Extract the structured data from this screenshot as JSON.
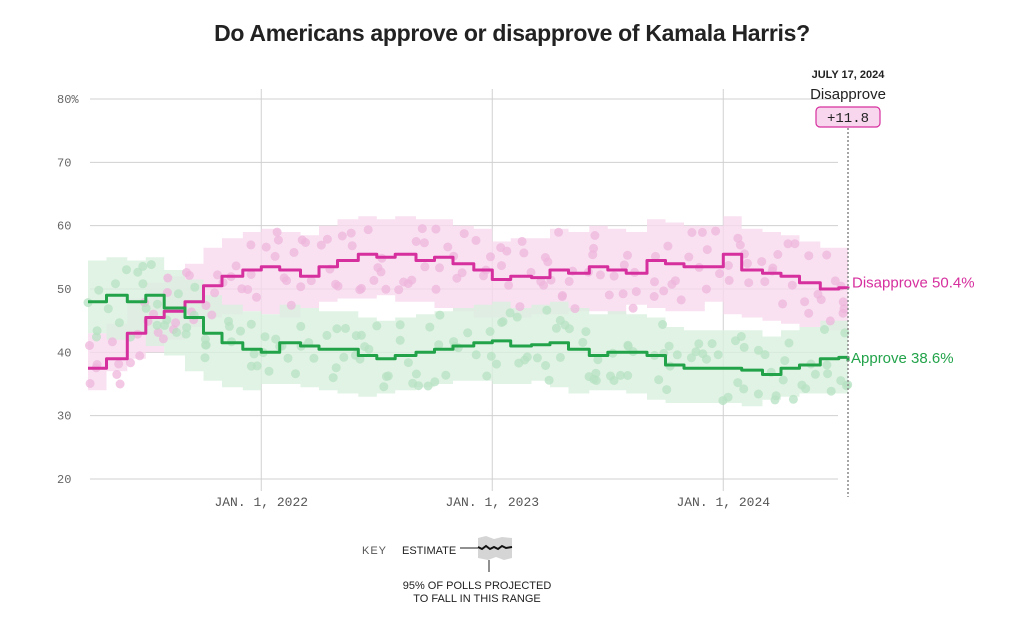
{
  "title": "Do Americans approve or disapprove of Kamala Harris?",
  "colors": {
    "disapprove": "#d62f9e",
    "disapprove_band": "#f7d9ee",
    "disapprove_dot": "#eeb6dc",
    "approve": "#22a34a",
    "approve_band": "#d9f0df",
    "approve_dot": "#b6e2c2",
    "grid": "#d0d0d0",
    "lead_badge_fill": "#f8d7ee",
    "lead_badge_stroke": "#d62f9e"
  },
  "callout": {
    "date": "JULY 17, 2024",
    "leader": "Disapprove",
    "margin": "+11.8"
  },
  "key": {
    "label": "KEY",
    "estimate": "ESTIMATE",
    "note_line1": "95% OF POLLS PROJECTED",
    "note_line2": "TO FALL IN THIS RANGE"
  },
  "chart_data": {
    "type": "line",
    "title": "Do Americans approve or disapprove of Kamala Harris?",
    "xlabel": "",
    "ylabel": "",
    "ylim": [
      20,
      80
    ],
    "yticks": [
      20,
      30,
      40,
      50,
      60,
      70,
      80
    ],
    "ytick_labels": [
      "20",
      "30",
      "40",
      "50",
      "60",
      "70",
      "80%"
    ],
    "xlim": [
      2021.25,
      2024.54
    ],
    "xticks": [
      2022.0,
      2023.0,
      2024.0
    ],
    "xtick_labels": [
      "JAN. 1, 2022",
      "JAN. 1, 2023",
      "JAN. 1, 2024"
    ],
    "grid": true,
    "legend": "right-end labels",
    "end_date_marker": 2024.54,
    "x": [
      2021.25,
      2021.33,
      2021.42,
      2021.5,
      2021.58,
      2021.67,
      2021.75,
      2021.83,
      2021.92,
      2022.0,
      2022.08,
      2022.17,
      2022.25,
      2022.33,
      2022.42,
      2022.5,
      2022.58,
      2022.67,
      2022.75,
      2022.83,
      2022.92,
      2023.0,
      2023.08,
      2023.17,
      2023.25,
      2023.33,
      2023.42,
      2023.5,
      2023.58,
      2023.67,
      2023.75,
      2023.83,
      2023.92,
      2024.0,
      2024.08,
      2024.17,
      2024.25,
      2024.33,
      2024.42,
      2024.5,
      2024.54
    ],
    "series": [
      {
        "name": "Disapprove",
        "end_label": "Disapprove 50.4%",
        "final_value": 50.4,
        "values": [
          37.5,
          39,
          43,
          45.5,
          46.5,
          48,
          50.5,
          52,
          53,
          53.5,
          53,
          52,
          53.5,
          54.5,
          55.5,
          55,
          55.5,
          54.5,
          55,
          54,
          53,
          51.5,
          52,
          51.8,
          53,
          52.5,
          53.5,
          53,
          52.5,
          54.5,
          54,
          53.5,
          53.5,
          55.5,
          53,
          52.5,
          52,
          51,
          50,
          50.2,
          50.4
        ],
        "band_lower": [
          32.5,
          34,
          37,
          39,
          40,
          42,
          44,
          45.5,
          46,
          46.5,
          46,
          45.5,
          47,
          48,
          48.5,
          48.5,
          49,
          48,
          48,
          47,
          46.5,
          45.5,
          45.5,
          45.5,
          46,
          46,
          46.5,
          46.5,
          46,
          47.5,
          47,
          46.5,
          46.5,
          48,
          46,
          45.5,
          45,
          44.5,
          44,
          43.5,
          43.5
        ],
        "band_upper": [
          43,
          44.5,
          48.5,
          51,
          52,
          54,
          56.5,
          58,
          59,
          59.5,
          59,
          58.5,
          60,
          61,
          61.5,
          61,
          61.5,
          61,
          61,
          60,
          59.5,
          57.5,
          58,
          58,
          59.5,
          59,
          60,
          59.5,
          59,
          61,
          60.5,
          60,
          60,
          61.5,
          59.5,
          59,
          58.5,
          57.5,
          56.5,
          56.5,
          56.5
        ]
      },
      {
        "name": "Approve",
        "end_label": "Approve 38.6%",
        "final_value": 38.6,
        "values": [
          48,
          49,
          48,
          49,
          47,
          45.5,
          43,
          41.5,
          40.5,
          40,
          41.5,
          41,
          40.5,
          40.5,
          39.5,
          39,
          39.5,
          40,
          40.5,
          41,
          41.5,
          41.8,
          41,
          41.2,
          41.5,
          40.5,
          39.5,
          40,
          40,
          39.5,
          38,
          37.5,
          37.5,
          37.5,
          37.2,
          36.5,
          37.5,
          38,
          39,
          39.2,
          38.6
        ],
        "band_lower": [
          42,
          43,
          42,
          43,
          41,
          39.5,
          37,
          35.5,
          34.5,
          34,
          35,
          35,
          34.5,
          34,
          33.5,
          33,
          33.5,
          34,
          34.5,
          35,
          35.5,
          35.5,
          35,
          35,
          35.5,
          34.5,
          33.5,
          34,
          34,
          33.5,
          32.5,
          32,
          32,
          32,
          32,
          31.5,
          32.5,
          33,
          33.5,
          33.5,
          33.5
        ],
        "band_upper": [
          54.5,
          55,
          54.5,
          55,
          53,
          51.5,
          49,
          47.5,
          46.5,
          46,
          47.5,
          47,
          46.5,
          46.5,
          45.5,
          45,
          45.5,
          46,
          46.5,
          47,
          47.5,
          48,
          47,
          47.5,
          48,
          47,
          46,
          46.5,
          46,
          45.5,
          44,
          43.5,
          43.5,
          43.5,
          43.5,
          42.5,
          43.5,
          44,
          45,
          45,
          44
        ]
      }
    ]
  }
}
